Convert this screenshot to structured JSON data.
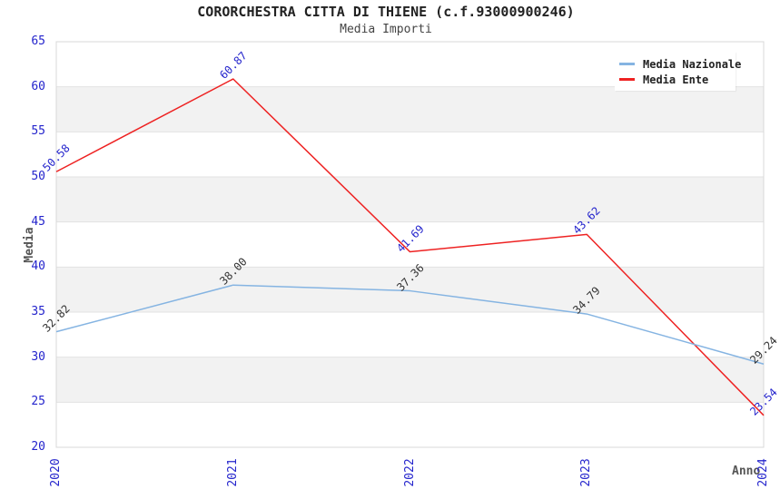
{
  "chart_data": {
    "type": "line",
    "title": "CORORCHESTRA CITTA DI THIENE (c.f.93000900246)",
    "subtitle": "Media Importi",
    "xlabel": "Anno",
    "ylabel": "Media",
    "categories": [
      "2020",
      "2021",
      "2022",
      "2023",
      "2024"
    ],
    "ylim": [
      20,
      65
    ],
    "y_ticks": [
      20,
      25,
      30,
      35,
      40,
      45,
      50,
      55,
      60,
      65
    ],
    "grid": "horizontal gridlines with alternating gray bands",
    "legend_position": "top-right",
    "series": [
      {
        "name": "Media Nazionale",
        "color": "#85b4e2",
        "label_color": "#333333",
        "values": [
          32.82,
          38.0,
          37.36,
          34.79,
          29.24
        ],
        "labels": [
          "32.82",
          "38.00",
          "37.36",
          "34.79",
          "29.24"
        ]
      },
      {
        "name": "Media Ente",
        "color": "#ee2222",
        "label_color": "#2424cc",
        "values": [
          50.58,
          60.87,
          41.69,
          43.62,
          23.54
        ],
        "labels": [
          "50.58",
          "60.87",
          "41.69",
          "43.62",
          "23.54"
        ]
      }
    ],
    "colors": {
      "axis_tick_text": "#2424cc",
      "band": "#f2f2f2",
      "gridline": "#e2e2e2",
      "plot_border": "#d8d8d8"
    }
  }
}
